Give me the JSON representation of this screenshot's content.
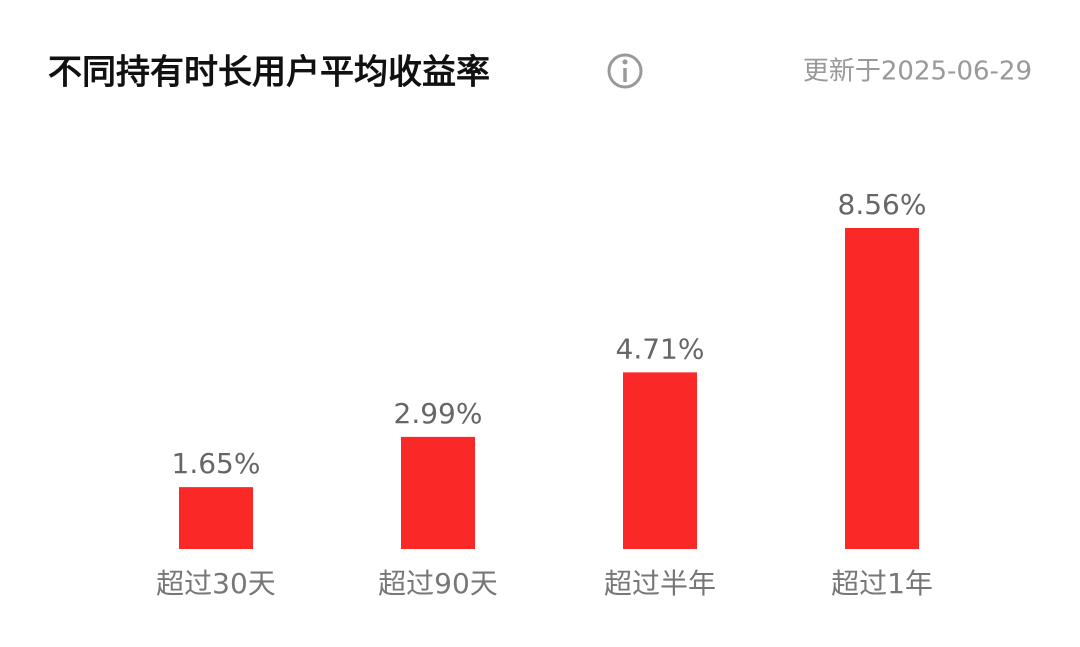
{
  "chart_data": {
    "type": "bar",
    "title": "不同持有时长用户平均收益率",
    "subtitle": "更新于2025-06-29",
    "categories": [
      "超过30天",
      "超过90天",
      "超过半年",
      "超过1年"
    ],
    "values": [
      1.65,
      2.99,
      4.71,
      8.56
    ],
    "value_labels": [
      "1.65%",
      "2.99%",
      "4.71%",
      "8.56%"
    ],
    "color": "#fb2828"
  }
}
